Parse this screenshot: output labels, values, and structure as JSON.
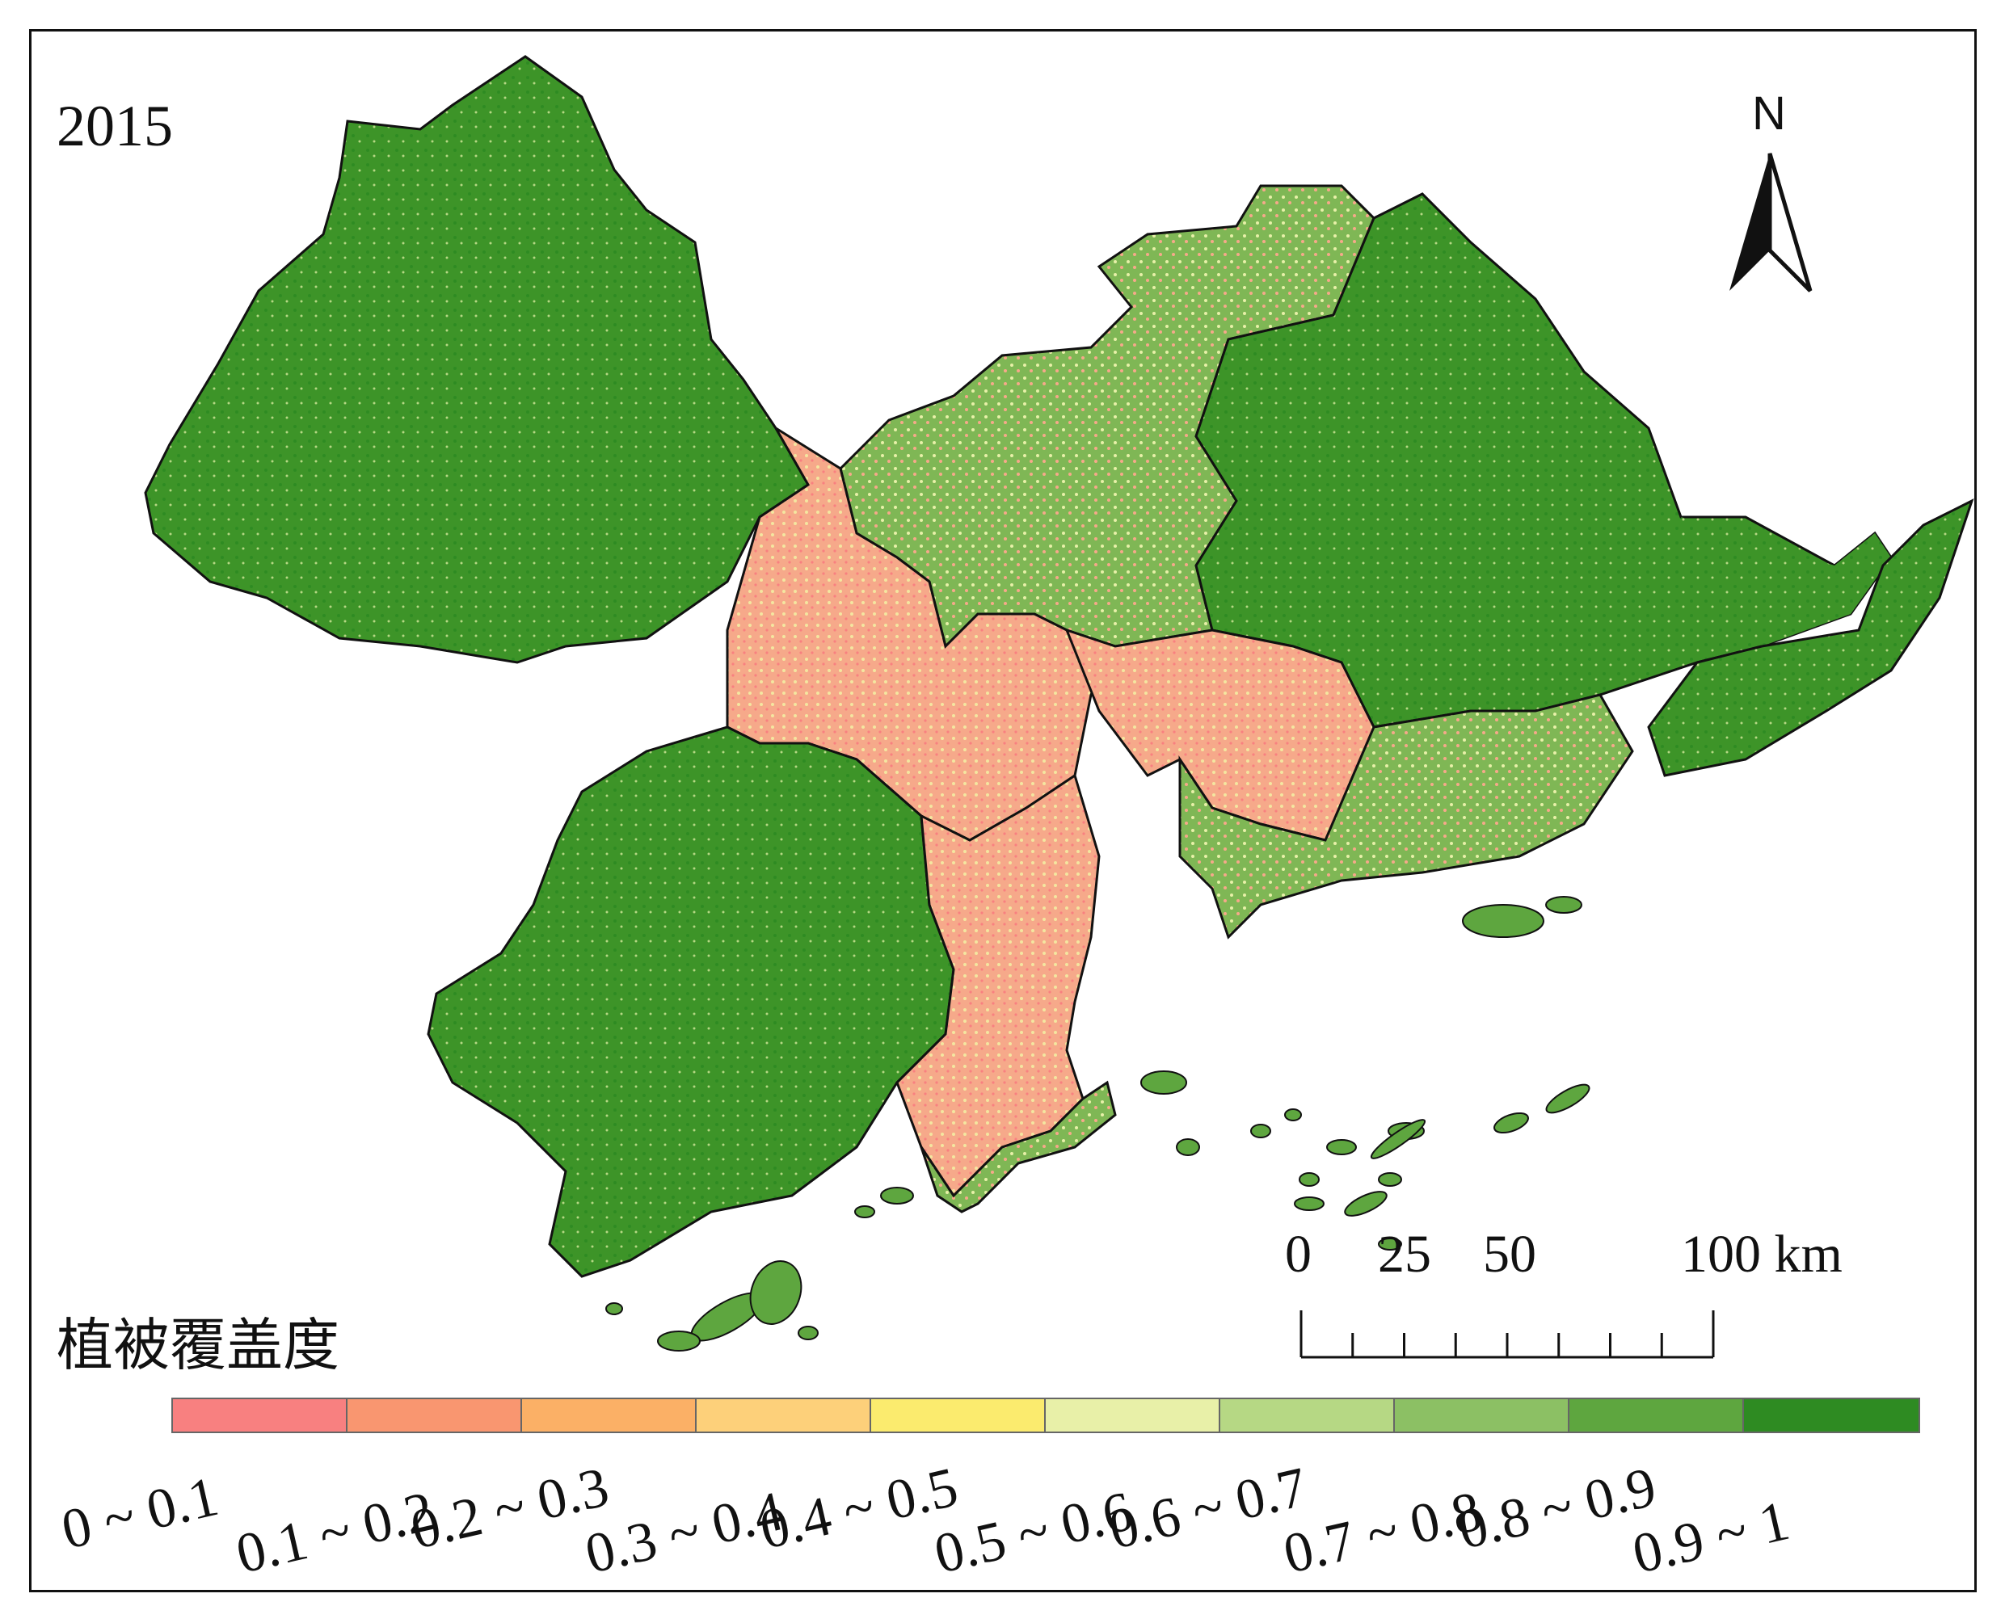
{
  "map": {
    "year_label": "2015",
    "north_label": "N",
    "scale": {
      "labels": [
        "0",
        "25",
        "50",
        "100 km"
      ],
      "ticks_km": [
        0,
        12.5,
        25,
        37.5,
        50,
        62.5,
        75,
        87.5,
        100
      ]
    },
    "legend": {
      "title": "植被覆盖度",
      "classes": [
        {
          "label": "0 ~ 0.1",
          "color": "#f88080"
        },
        {
          "label": "0.1 ~ 0.2",
          "color": "#f99670"
        },
        {
          "label": "0.2 ~ 0.3",
          "color": "#fbb066"
        },
        {
          "label": "0.3 ~ 0.4",
          "color": "#fdd07a"
        },
        {
          "label": "0.4 ~ 0.5",
          "color": "#fbeb6e"
        },
        {
          "label": "0.5 ~ 0.6",
          "color": "#e8f0a8"
        },
        {
          "label": "0.6 ~ 0.7",
          "color": "#b6d884"
        },
        {
          "label": "0.7 ~ 0.8",
          "color": "#8cc064"
        },
        {
          "label": "0.8 ~ 0.9",
          "color": "#5ea63f"
        },
        {
          "label": "0.9 ~ 1",
          "color": "#2e8b22"
        }
      ]
    }
  }
}
